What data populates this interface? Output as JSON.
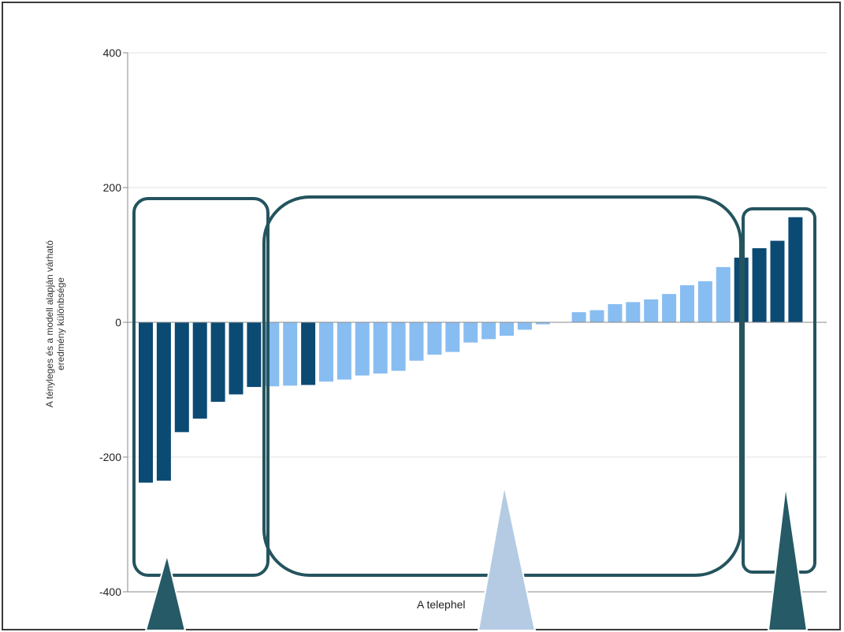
{
  "chart_data": {
    "type": "bar",
    "ylabel_line1": "A tényleges és a modell alapján várható",
    "ylabel_line2": "eredmény különbsége",
    "xlabel": "A telephel",
    "ylim": [
      -400,
      400
    ],
    "yticks": [
      400,
      200,
      0,
      -200,
      -400
    ],
    "grid": true,
    "values": [
      -238,
      -235,
      -163,
      -143,
      -118,
      -107,
      -96,
      -95,
      -94,
      -93,
      -88,
      -85,
      -79,
      -76,
      -72,
      -57,
      -48,
      -44,
      -30,
      -25,
      -20,
      -11,
      -3,
      0,
      15,
      18,
      27,
      30,
      34,
      42,
      55,
      61,
      82,
      96,
      110,
      121,
      156
    ],
    "highlight": [
      true,
      true,
      true,
      true,
      true,
      true,
      true,
      false,
      false,
      true,
      false,
      false,
      false,
      false,
      false,
      false,
      false,
      false,
      false,
      false,
      false,
      false,
      false,
      false,
      false,
      false,
      false,
      false,
      false,
      false,
      false,
      false,
      false,
      true,
      true,
      true,
      true
    ],
    "colors": {
      "highlight": "#0b4a73",
      "normal": "#88bdf1",
      "group_border": "#24545e",
      "arrow_dark": "#255a66",
      "arrow_light": "#b4cbe3",
      "grid": "#e2e2e2",
      "axis": "#888888"
    }
  }
}
